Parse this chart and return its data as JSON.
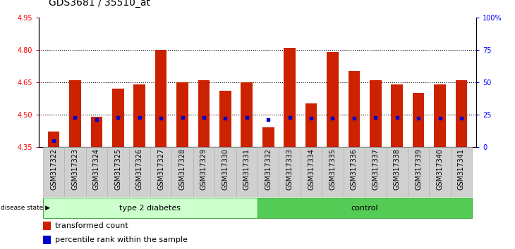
{
  "title": "GDS3681 / 35510_at",
  "samples": [
    "GSM317322",
    "GSM317323",
    "GSM317324",
    "GSM317325",
    "GSM317326",
    "GSM317327",
    "GSM317328",
    "GSM317329",
    "GSM317330",
    "GSM317331",
    "GSM317332",
    "GSM317333",
    "GSM317334",
    "GSM317335",
    "GSM317336",
    "GSM317337",
    "GSM317338",
    "GSM317339",
    "GSM317340",
    "GSM317341"
  ],
  "red_values": [
    4.42,
    4.66,
    4.49,
    4.62,
    4.64,
    4.8,
    4.65,
    4.66,
    4.61,
    4.65,
    4.44,
    4.81,
    4.55,
    4.79,
    4.7,
    4.66,
    4.64,
    4.6,
    4.64,
    4.66
  ],
  "blue_percentiles": [
    5,
    23,
    21,
    23,
    23,
    22,
    23,
    23,
    22,
    23,
    21,
    23,
    22,
    22,
    22,
    23,
    23,
    22,
    22,
    22
  ],
  "group_colors_light": "#ccffcc",
  "group_colors_dark": "#55cc55",
  "ylim_left": [
    4.35,
    4.95
  ],
  "ylim_right": [
    0,
    100
  ],
  "yticks_left": [
    4.35,
    4.5,
    4.65,
    4.8,
    4.95
  ],
  "yticks_right": [
    0,
    25,
    50,
    75,
    100
  ],
  "ytick_labels_right": [
    "0",
    "25",
    "50",
    "75",
    "100%"
  ],
  "bar_color": "#cc2200",
  "dot_color": "#0000cc",
  "bar_width": 0.55,
  "bg_color": "#ffffff",
  "title_fontsize": 10,
  "tick_fontsize": 7,
  "label_fontsize": 8,
  "baseline": 4.35,
  "n_diabetes": 10,
  "n_control": 10
}
